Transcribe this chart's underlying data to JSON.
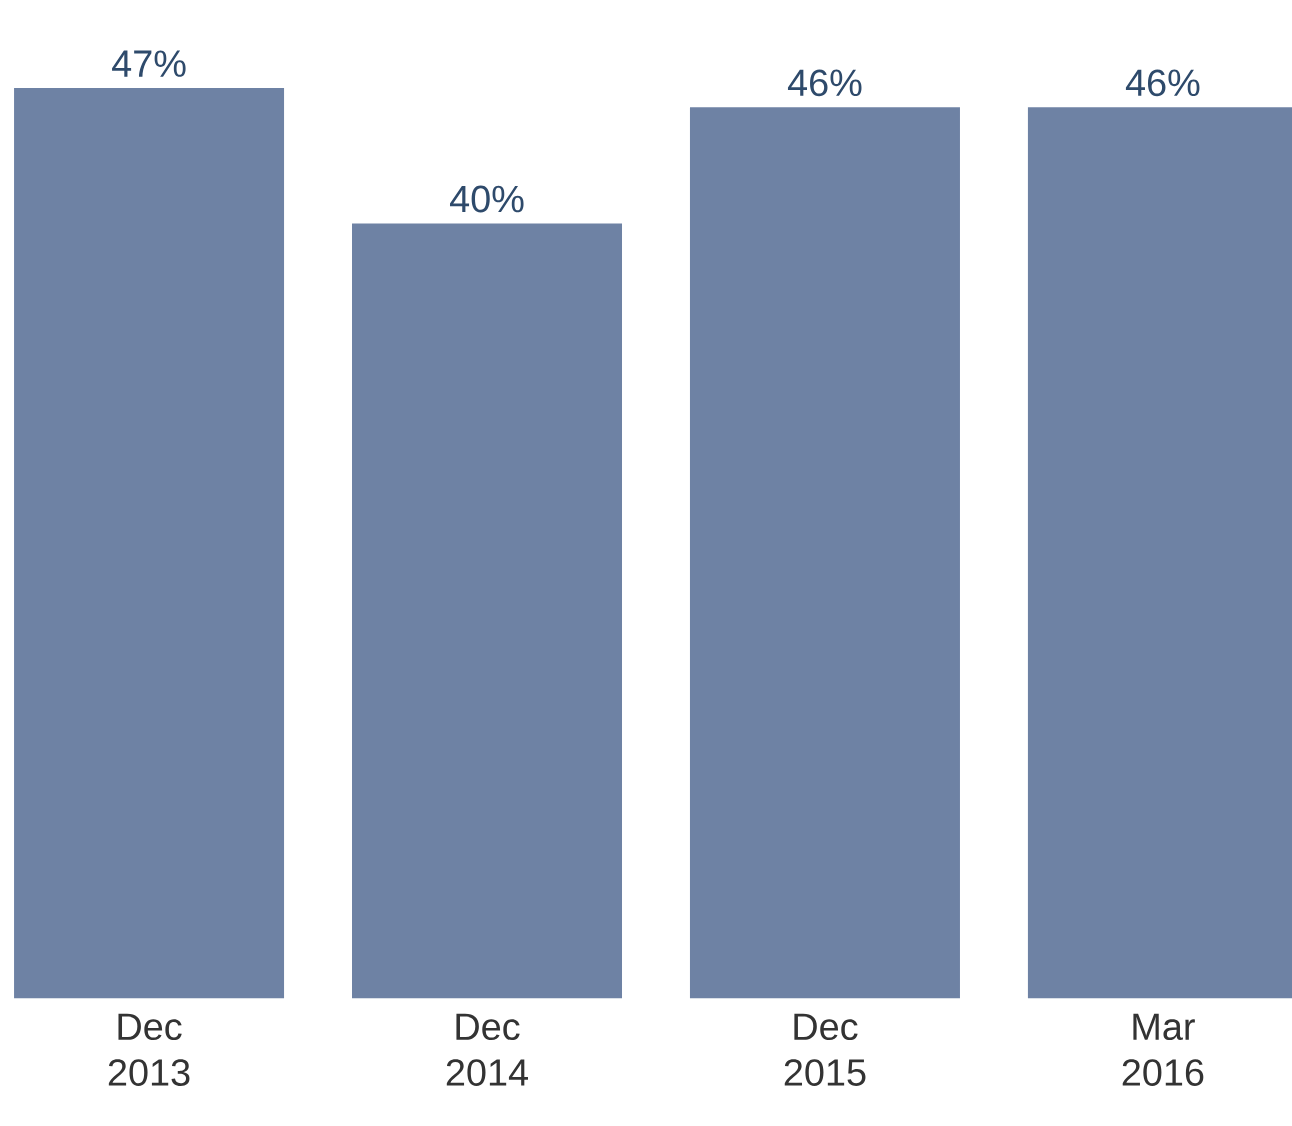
{
  "chart_data": {
    "type": "bar",
    "categories": [
      "Dec 2013",
      "Dec 2014",
      "Dec 2015",
      "Mar 2016"
    ],
    "values": [
      47,
      40,
      46,
      46
    ],
    "value_labels": [
      "47%",
      "40%",
      "46%",
      "46%"
    ],
    "color": "#6e82a4"
  }
}
